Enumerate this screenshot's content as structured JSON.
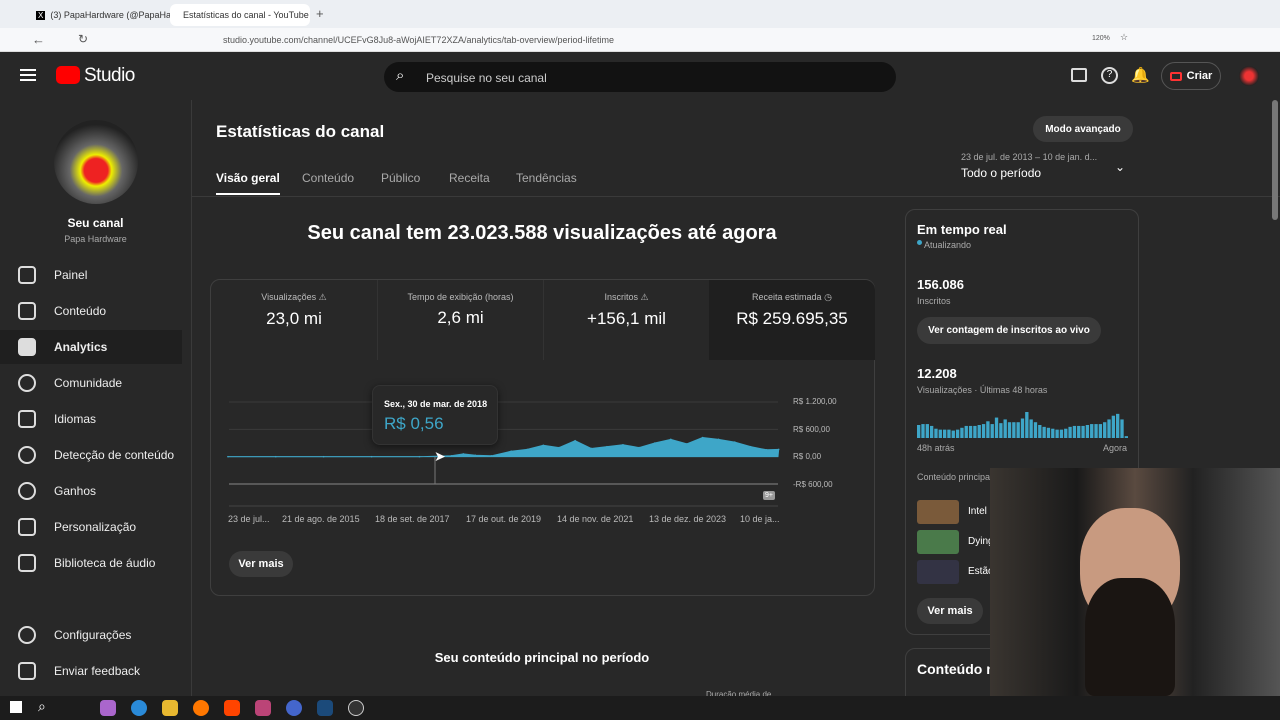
{
  "browser": {
    "tabs": [
      {
        "label": "(3) PapaHardware (@PapaHard"
      },
      {
        "label": "Estatísticas do canal - YouTube"
      }
    ],
    "url": "studio.youtube.com/channel/UCEFvG8Ju8-aWojAIET72XZA/analytics/tab-overview/period-lifetime",
    "zoom": "120%"
  },
  "header": {
    "logo": "Studio",
    "search_placeholder": "Pesquise no seu canal",
    "create_label": "Criar"
  },
  "sidebar": {
    "channel_title": "Seu canal",
    "channel_name": "Papa Hardware",
    "items": [
      {
        "label": "Painel"
      },
      {
        "label": "Conteúdo"
      },
      {
        "label": "Analytics"
      },
      {
        "label": "Comunidade"
      },
      {
        "label": "Idiomas"
      },
      {
        "label": "Detecção de conteúdo"
      },
      {
        "label": "Ganhos"
      },
      {
        "label": "Personalização"
      },
      {
        "label": "Biblioteca de áudio"
      }
    ],
    "bottom": [
      {
        "label": "Configurações"
      },
      {
        "label": "Enviar feedback"
      }
    ]
  },
  "page": {
    "title": "Estatísticas do canal",
    "advanced_label": "Modo avançado",
    "period_range": "23 de jul. de 2013 – 10 de jan. d...",
    "period_label": "Todo o período",
    "tabs": [
      {
        "label": "Visão geral"
      },
      {
        "label": "Conteúdo"
      },
      {
        "label": "Público"
      },
      {
        "label": "Receita"
      },
      {
        "label": "Tendências"
      }
    ],
    "headline": "Seu canal tem 23.023.588 visualizações até agora",
    "kpis": [
      {
        "label": "Visualizações",
        "value": "23,0 mi",
        "icon": "warning"
      },
      {
        "label": "Tempo de exibição (horas)",
        "value": "2,6 mi"
      },
      {
        "label": "Inscritos",
        "value": "+156,1 mil",
        "icon": "warning"
      },
      {
        "label": "Receita estimada",
        "value": "R$ 259.695,35",
        "icon": "clock"
      }
    ],
    "see_more": "Ver mais",
    "top_content_title": "Seu conteúdo principal no período",
    "partial_col": "Duração média de"
  },
  "chart_data": {
    "type": "area",
    "ylabel": "",
    "xlabel": "",
    "y_ticks": [
      "R$ 1.200,00",
      "R$ 600,00",
      "R$ 0,00",
      "-R$ 600,00"
    ],
    "ylim": [
      -600,
      1200
    ],
    "x_ticks": [
      "23 de jul...",
      "21 de ago. de 2015",
      "18 de set. de 2017",
      "17 de out. de 2019",
      "14 de nov. de 2021",
      "13 de dez. de 2023",
      "10 de ja..."
    ],
    "annotation_badge": "9+",
    "color": "#3ea6c8",
    "tooltip": {
      "date": "Sex., 30 de mar. de 2018",
      "value": "R$ 0,56"
    },
    "x": [
      "2013-07",
      "2014-07",
      "2015-07",
      "2016-07",
      "2017-07",
      "2018-03",
      "2018-06",
      "2018-09",
      "2019-01",
      "2019-06",
      "2019-10",
      "2020-02",
      "2020-06",
      "2020-10",
      "2021-02",
      "2021-06",
      "2021-10",
      "2022-02",
      "2022-06",
      "2022-10",
      "2023-02",
      "2023-06",
      "2023-10",
      "2024-02",
      "2024-06",
      "2024-10",
      "2025-01"
    ],
    "values": [
      0,
      0,
      0,
      0,
      0,
      20,
      60,
      30,
      20,
      120,
      160,
      250,
      200,
      350,
      180,
      220,
      260,
      200,
      300,
      380,
      280,
      420,
      380,
      320,
      220,
      150,
      160
    ]
  },
  "realtime": {
    "title": "Em tempo real",
    "status": "Atualizando",
    "subs_value": "156.086",
    "subs_label": "Inscritos",
    "live_button": "Ver contagem de inscritos ao vivo",
    "views_value": "12.208",
    "views_label": "Visualizações · Últimas 48 horas",
    "start_label": "48h atrás",
    "end_label": "Agora",
    "bars": [
      14,
      15,
      15,
      13,
      10,
      9,
      9,
      9,
      8,
      9,
      11,
      13,
      13,
      13,
      14,
      15,
      18,
      15,
      22,
      16,
      20,
      17,
      17,
      17,
      21,
      28,
      20,
      17,
      14,
      12,
      11,
      10,
      9,
      9,
      10,
      12,
      13,
      13,
      13,
      14,
      15,
      15,
      15,
      17,
      20,
      24,
      26,
      20,
      2
    ],
    "top_content_label": "Conteúdo principa",
    "top_items": [
      {
        "title": "Intel"
      },
      {
        "title": "Dying"
      },
      {
        "title": "Estão"
      }
    ],
    "see_more": "Ver mais",
    "more_title": "Conteúdo m"
  }
}
